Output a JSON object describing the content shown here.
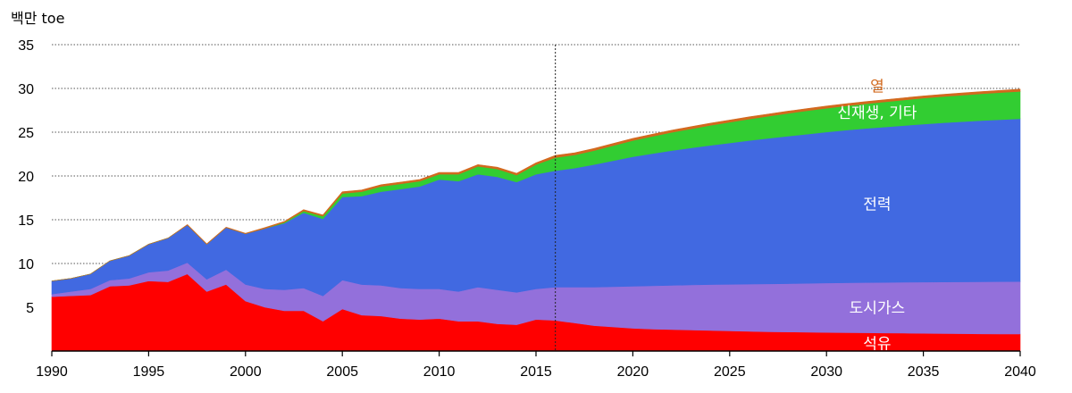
{
  "chart_data": {
    "type": "area",
    "stacked": true,
    "unit_label": "백만 toe",
    "x": [
      1990,
      1991,
      1992,
      1993,
      1994,
      1995,
      1996,
      1997,
      1998,
      1999,
      2000,
      2001,
      2002,
      2003,
      2004,
      2005,
      2006,
      2007,
      2008,
      2009,
      2010,
      2011,
      2012,
      2013,
      2014,
      2015,
      2016,
      2017,
      2018,
      2019,
      2020,
      2021,
      2022,
      2023,
      2024,
      2025,
      2026,
      2027,
      2028,
      2029,
      2030,
      2031,
      2032,
      2033,
      2034,
      2035,
      2036,
      2037,
      2038,
      2039,
      2040
    ],
    "xlim": [
      1990,
      2040
    ],
    "x_ticks": [
      1990,
      1995,
      2000,
      2005,
      2010,
      2015,
      2020,
      2025,
      2030,
      2035,
      2040
    ],
    "ylim": [
      0,
      35
    ],
    "y_ticks": [
      5,
      10,
      15,
      20,
      25,
      30,
      35
    ],
    "grid": "horizontal-dotted",
    "projection_start": 2016,
    "series": [
      {
        "name": "석유",
        "color": "#ff0000",
        "values": [
          6.2,
          6.3,
          6.4,
          7.4,
          7.5,
          8.0,
          7.9,
          8.8,
          6.8,
          7.6,
          5.7,
          5.0,
          4.6,
          4.6,
          3.4,
          4.8,
          4.1,
          4.0,
          3.7,
          3.6,
          3.7,
          3.4,
          3.4,
          3.1,
          3.0,
          3.6,
          3.5,
          3.2,
          2.9,
          2.75,
          2.6,
          2.5,
          2.45,
          2.4,
          2.35,
          2.3,
          2.25,
          2.2,
          2.18,
          2.15,
          2.12,
          2.1,
          2.08,
          2.06,
          2.04,
          2.02,
          2.0,
          1.98,
          1.96,
          1.95,
          1.94
        ]
      },
      {
        "name": "도시가스",
        "color": "#9370db",
        "values": [
          0.3,
          0.5,
          0.7,
          0.7,
          0.8,
          1.0,
          1.3,
          1.3,
          1.4,
          1.7,
          1.9,
          2.1,
          2.4,
          2.6,
          2.9,
          3.3,
          3.5,
          3.5,
          3.5,
          3.5,
          3.4,
          3.4,
          3.9,
          3.9,
          3.7,
          3.5,
          3.8,
          4.1,
          4.4,
          4.6,
          4.8,
          4.95,
          5.05,
          5.15,
          5.25,
          5.32,
          5.4,
          5.47,
          5.52,
          5.58,
          5.65,
          5.7,
          5.74,
          5.78,
          5.82,
          5.86,
          5.89,
          5.92,
          5.95,
          5.97,
          6.0
        ]
      },
      {
        "name": "전력",
        "color": "#4169e1",
        "values": [
          1.5,
          1.5,
          1.7,
          2.2,
          2.6,
          3.2,
          3.7,
          4.3,
          4.0,
          4.8,
          5.8,
          6.9,
          7.6,
          8.6,
          8.8,
          9.5,
          10.1,
          10.7,
          11.3,
          11.7,
          12.5,
          12.6,
          12.9,
          12.9,
          12.6,
          13.1,
          13.3,
          13.6,
          14.0,
          14.4,
          14.8,
          15.1,
          15.4,
          15.65,
          15.9,
          16.15,
          16.4,
          16.63,
          16.85,
          17.05,
          17.25,
          17.43,
          17.6,
          17.75,
          17.9,
          18.05,
          18.18,
          18.3,
          18.42,
          18.52,
          18.6
        ]
      },
      {
        "name": "신재생, 기타",
        "color": "#32cd32",
        "values": [
          0.0,
          0.0,
          0.0,
          0.0,
          0.0,
          0.0,
          0.0,
          0.0,
          0.0,
          0.0,
          0.0,
          0.0,
          0.1,
          0.2,
          0.3,
          0.4,
          0.5,
          0.6,
          0.6,
          0.6,
          0.6,
          0.8,
          0.9,
          0.9,
          0.8,
          1.1,
          1.5,
          1.5,
          1.6,
          1.72,
          1.85,
          1.97,
          2.08,
          2.18,
          2.28,
          2.37,
          2.45,
          2.53,
          2.6,
          2.67,
          2.72,
          2.77,
          2.82,
          2.87,
          2.92,
          2.96,
          3.0,
          3.03,
          3.06,
          3.09,
          3.12
        ]
      },
      {
        "name": "열",
        "color": "#d2691e",
        "values": [
          0.0,
          0.0,
          0.0,
          0.0,
          0.0,
          0.0,
          0.0,
          0.05,
          0.05,
          0.05,
          0.05,
          0.1,
          0.1,
          0.15,
          0.15,
          0.2,
          0.2,
          0.2,
          0.2,
          0.2,
          0.2,
          0.2,
          0.2,
          0.2,
          0.2,
          0.2,
          0.25,
          0.25,
          0.25,
          0.25,
          0.25,
          0.25,
          0.25,
          0.25,
          0.25,
          0.25,
          0.25,
          0.25,
          0.25,
          0.25,
          0.25,
          0.25,
          0.25,
          0.25,
          0.25,
          0.25,
          0.25,
          0.25,
          0.25,
          0.25,
          0.25
        ]
      }
    ],
    "label_colors": {
      "석유": "#ffffff",
      "도시가스": "#ffffff",
      "전력": "#ffffff",
      "신재생, 기타": "#ffffff",
      "열": "#d2691e"
    }
  }
}
